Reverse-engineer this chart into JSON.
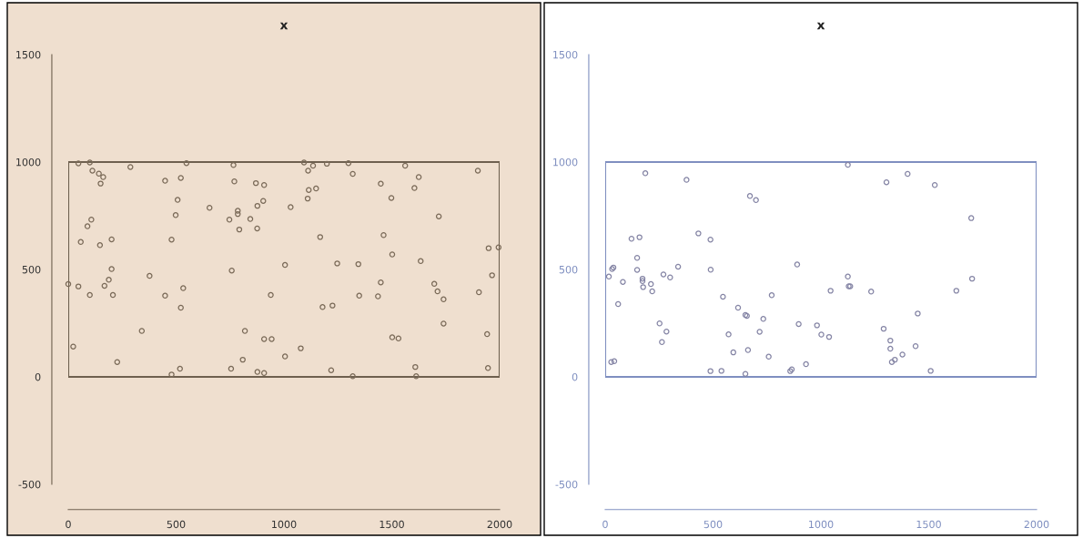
{
  "chart_data": [
    {
      "type": "scatter",
      "title": "x",
      "color": "#7a6a58",
      "marker": "circle",
      "grid": false,
      "xlim": [
        0,
        2000
      ],
      "ylim": [
        -500,
        1500
      ],
      "xticks": [
        0,
        500,
        1000,
        1500,
        2000
      ],
      "yticks": [
        -500,
        0,
        500,
        1000,
        1500
      ],
      "x": [
        47,
        100,
        112,
        142,
        162,
        150,
        288,
        449,
        522,
        548,
        507,
        498,
        479,
        655,
        766,
        770,
        747,
        786,
        786,
        844,
        793,
        870,
        908,
        877,
        904,
        876,
        1031,
        1093,
        1112,
        1135,
        1115,
        1149,
        1110,
        1199,
        1299,
        1319,
        1449,
        1498,
        1562,
        1605,
        1625,
        1718,
        1899,
        1462,
        1168,
        1502,
        1634,
        1949,
        1995,
        1965,
        1904,
        1697,
        1712,
        1740,
        1740,
        1942,
        1946,
        1609,
        1613,
        1319,
        1502,
        1531,
        1449,
        1436,
        1349,
        1345,
        1247,
        1005,
        939,
        1179,
        1225,
        1078,
        1005,
        1219,
        908,
        943,
        819,
        809,
        755,
        877,
        908,
        758,
        518,
        479,
        533,
        522,
        449,
        377,
        341,
        227,
        23,
        0,
        47,
        100,
        168,
        188,
        201,
        207,
        201,
        147,
        58,
        89,
        107
      ],
      "values": [
        994,
        998,
        960,
        946,
        930,
        900,
        977,
        913,
        926,
        995,
        824,
        753,
        639,
        787,
        986,
        910,
        732,
        773,
        758,
        735,
        686,
        902,
        893,
        796,
        819,
        691,
        790,
        998,
        960,
        983,
        870,
        877,
        830,
        992,
        995,
        945,
        899,
        833,
        983,
        879,
        930,
        747,
        960,
        660,
        651,
        570,
        539,
        599,
        603,
        473,
        394,
        433,
        398,
        361,
        248,
        199,
        41,
        46,
        3,
        3,
        184,
        179,
        440,
        375,
        378,
        525,
        528,
        521,
        381,
        325,
        332,
        133,
        95,
        31,
        176,
        176,
        214,
        80,
        38,
        23,
        18,
        495,
        38,
        11,
        413,
        322,
        378,
        470,
        214,
        69,
        141,
        432,
        421,
        381,
        424,
        452,
        502,
        381,
        640,
        613,
        628,
        701,
        732
      ]
    },
    {
      "type": "scatter",
      "title": "x",
      "color": "#8585a5",
      "marker": "circle",
      "grid": false,
      "xlim": [
        0,
        2000
      ],
      "ylim": [
        -500,
        1500
      ],
      "xticks": [
        0,
        500,
        1000,
        1500,
        2000
      ],
      "yticks": [
        -500,
        0,
        500,
        1000,
        1500
      ],
      "x": [
        186,
        377,
        671,
        699,
        432,
        488,
        122,
        159,
        148,
        148,
        38,
        32,
        17,
        82,
        173,
        173,
        176,
        212,
        218,
        270,
        301,
        338,
        489,
        60,
        252,
        284,
        263,
        546,
        616,
        650,
        657,
        733,
        772,
        716,
        572,
        594,
        662,
        758,
        488,
        539,
        650,
        28,
        42,
        890,
        897,
        865,
        858,
        931,
        1125,
        1304,
        1402,
        1528,
        1697,
        1701,
        1628,
        1125,
        1129,
        1136,
        1045,
        1233,
        982,
        1002,
        1038,
        1291,
        1322,
        1322,
        1378,
        1343,
        1329,
        1439,
        1449,
        1509
      ],
      "values": [
        948,
        917,
        842,
        823,
        668,
        639,
        643,
        650,
        554,
        498,
        509,
        502,
        467,
        442,
        457,
        446,
        418,
        432,
        398,
        477,
        463,
        513,
        499,
        339,
        249,
        211,
        162,
        373,
        322,
        288,
        284,
        270,
        380,
        210,
        198,
        114,
        125,
        94,
        27,
        28,
        14,
        69,
        73,
        523,
        246,
        35,
        27,
        59,
        987,
        906,
        945,
        893,
        739,
        457,
        401,
        467,
        422,
        422,
        401,
        397,
        240,
        197,
        186,
        224,
        169,
        131,
        104,
        80,
        69,
        143,
        295,
        28
      ]
    }
  ]
}
